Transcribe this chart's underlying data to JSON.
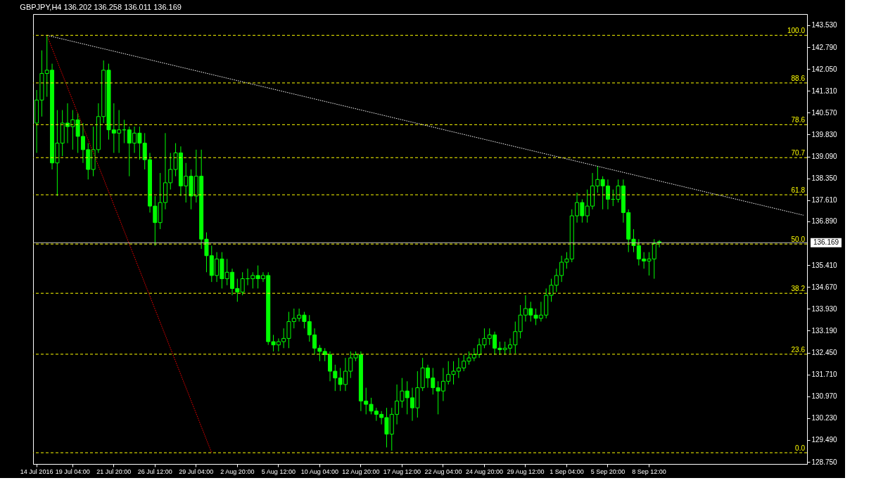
{
  "chart_data": {
    "type": "candlestick",
    "title": "GBPJPY,H4  136.202 136.258 136.011 136.169",
    "color": "#00ff00",
    "categories": [
      "14 Jul 2016",
      null,
      null,
      null,
      null,
      null,
      null,
      "19 Jul 04:00",
      null,
      null,
      null,
      null,
      null,
      null,
      null,
      "21 Jul 20:00",
      null,
      null,
      null,
      null,
      null,
      null,
      null,
      "26 Jul 12:00",
      null,
      null,
      null,
      null,
      null,
      null,
      null,
      "29 Jul 04:00",
      null,
      null,
      null,
      null,
      null,
      null,
      null,
      "2 Aug 20:00",
      null,
      null,
      null,
      null,
      null,
      null,
      null,
      "5 Aug 12:00",
      null,
      null,
      null,
      null,
      null,
      null,
      null,
      "10 Aug 04:00",
      null,
      null,
      null,
      null,
      null,
      null,
      null,
      "12 Aug 20:00",
      null,
      null,
      null,
      null,
      null,
      null,
      null,
      "17 Aug 12:00",
      null,
      null,
      null,
      null,
      null,
      null,
      null,
      "22 Aug 04:00",
      null,
      null,
      null,
      null,
      null,
      null,
      null,
      "24 Aug 20:00",
      null,
      null,
      null,
      null,
      null,
      null,
      null,
      "29 Aug 12:00",
      null,
      null,
      null,
      null,
      null,
      null,
      null,
      "1 Sep 04:00",
      null,
      null,
      null,
      null,
      null,
      null,
      null,
      "5 Sep 20:00",
      null,
      null,
      null,
      null,
      null,
      null,
      null,
      "8 Sep 12:00",
      null,
      null,
      null,
      null,
      null,
      null,
      null,
      null,
      null,
      null,
      null,
      null,
      null,
      null,
      null,
      null,
      null,
      null,
      null,
      null,
      null,
      null,
      null,
      null,
      null,
      null,
      null,
      null,
      null,
      null
    ],
    "ohlc": [
      [
        140.22,
        141.34,
        139.21,
        141.0
      ],
      [
        141.0,
        142.68,
        140.44,
        141.9
      ],
      [
        141.9,
        143.19,
        141.11,
        142.01
      ],
      [
        142.01,
        142.23,
        138.65,
        138.87
      ],
      [
        138.87,
        140.66,
        137.75,
        139.54
      ],
      [
        139.54,
        140.66,
        139.1,
        140.22
      ],
      [
        140.22,
        140.89,
        139.54,
        140.1
      ],
      [
        140.1,
        140.66,
        139.32,
        140.33
      ],
      [
        140.33,
        140.55,
        139.21,
        139.77
      ],
      [
        139.77,
        140.22,
        138.87,
        139.32
      ],
      [
        139.32,
        139.54,
        138.31,
        138.65
      ],
      [
        138.65,
        140.1,
        138.42,
        139.32
      ],
      [
        139.32,
        140.89,
        139.21,
        140.44
      ],
      [
        140.44,
        142.34,
        140.22,
        142.01
      ],
      [
        142.01,
        142.23,
        139.66,
        139.99
      ],
      [
        139.99,
        140.89,
        139.21,
        139.88
      ],
      [
        139.88,
        140.66,
        139.21,
        139.99
      ],
      [
        139.99,
        140.33,
        139.54,
        139.99
      ],
      [
        139.99,
        140.1,
        138.42,
        139.54
      ],
      [
        139.54,
        140.1,
        139.21,
        139.88
      ],
      [
        139.88,
        140.1,
        138.98,
        139.54
      ],
      [
        139.54,
        139.88,
        138.65,
        138.98
      ],
      [
        138.98,
        139.21,
        137.19,
        137.41
      ],
      [
        137.41,
        137.75,
        136.07,
        136.85
      ],
      [
        136.85,
        138.53,
        136.63,
        137.53
      ],
      [
        137.53,
        139.88,
        137.3,
        138.2
      ],
      [
        138.2,
        139.21,
        137.97,
        138.65
      ],
      [
        138.65,
        139.54,
        138.42,
        139.21
      ],
      [
        139.21,
        139.43,
        137.75,
        138.09
      ],
      [
        138.09,
        138.87,
        137.53,
        138.42
      ],
      [
        138.42,
        138.65,
        137.3,
        137.75
      ],
      [
        137.75,
        139.32,
        137.53,
        138.42
      ],
      [
        138.42,
        139.32,
        135.96,
        136.29
      ],
      [
        136.29,
        136.52,
        135.17,
        135.73
      ],
      [
        135.73,
        136.07,
        134.84,
        135.06
      ],
      [
        135.06,
        135.85,
        134.84,
        135.62
      ],
      [
        135.62,
        135.85,
        134.62,
        134.95
      ],
      [
        134.95,
        135.62,
        134.73,
        135.17
      ],
      [
        135.17,
        135.29,
        134.39,
        134.62
      ],
      [
        134.62,
        134.95,
        134.17,
        134.5
      ],
      [
        134.5,
        135.17,
        134.39,
        134.95
      ],
      [
        134.95,
        135.29,
        134.73,
        134.95
      ],
      [
        134.95,
        135.17,
        134.62,
        135.06
      ],
      [
        135.06,
        135.4,
        134.62,
        134.95
      ],
      [
        134.95,
        135.17,
        134.84,
        135.06
      ],
      [
        135.06,
        135.17,
        132.71,
        132.82
      ],
      [
        132.82,
        133.05,
        132.49,
        132.71
      ],
      [
        132.71,
        132.93,
        132.49,
        132.82
      ],
      [
        132.82,
        133.27,
        132.6,
        132.93
      ],
      [
        132.93,
        133.83,
        132.6,
        133.5
      ],
      [
        133.5,
        133.94,
        133.27,
        133.61
      ],
      [
        133.61,
        133.94,
        133.5,
        133.72
      ],
      [
        133.72,
        133.83,
        133.27,
        133.5
      ],
      [
        133.5,
        133.72,
        132.82,
        133.05
      ],
      [
        133.05,
        133.27,
        132.38,
        132.6
      ],
      [
        132.6,
        132.71,
        132.16,
        132.49
      ],
      [
        132.49,
        132.6,
        132.16,
        132.38
      ],
      [
        132.38,
        132.49,
        131.48,
        131.82
      ],
      [
        131.82,
        132.04,
        131.15,
        131.59
      ],
      [
        131.59,
        131.93,
        131.15,
        131.37
      ],
      [
        131.37,
        132.27,
        131.15,
        131.82
      ],
      [
        131.82,
        132.49,
        131.59,
        132.27
      ],
      [
        132.27,
        132.49,
        132.16,
        132.38
      ],
      [
        132.38,
        132.49,
        130.47,
        130.81
      ],
      [
        130.81,
        131.26,
        130.36,
        130.7
      ],
      [
        130.7,
        130.92,
        130.36,
        130.47
      ],
      [
        130.47,
        130.58,
        130.14,
        130.36
      ],
      [
        130.36,
        130.47,
        130.02,
        130.25
      ],
      [
        130.25,
        130.58,
        129.24,
        129.69
      ],
      [
        129.69,
        130.58,
        129.13,
        130.36
      ],
      [
        130.36,
        131.37,
        130.02,
        130.81
      ],
      [
        130.81,
        131.59,
        130.58,
        131.15
      ],
      [
        131.15,
        131.48,
        130.36,
        130.92
      ],
      [
        130.92,
        131.26,
        130.14,
        130.58
      ],
      [
        130.58,
        131.82,
        130.25,
        131.26
      ],
      [
        131.26,
        132.27,
        131.15,
        131.93
      ],
      [
        131.93,
        132.04,
        131.26,
        131.59
      ],
      [
        131.59,
        131.93,
        131.03,
        131.26
      ],
      [
        131.26,
        131.48,
        130.36,
        131.15
      ],
      [
        131.15,
        131.93,
        130.81,
        131.48
      ],
      [
        131.48,
        132.16,
        131.37,
        131.71
      ],
      [
        131.71,
        132.16,
        131.37,
        131.82
      ],
      [
        131.82,
        132.27,
        131.59,
        131.93
      ],
      [
        131.93,
        132.38,
        131.82,
        132.16
      ],
      [
        132.16,
        132.49,
        132.04,
        132.27
      ],
      [
        132.27,
        132.6,
        132.16,
        132.38
      ],
      [
        132.38,
        132.93,
        132.27,
        132.71
      ],
      [
        132.71,
        133.27,
        132.6,
        132.93
      ],
      [
        132.93,
        133.27,
        132.71,
        133.05
      ],
      [
        133.05,
        133.16,
        132.38,
        132.6
      ],
      [
        132.6,
        132.82,
        132.38,
        132.55
      ],
      [
        132.55,
        132.82,
        132.38,
        132.6
      ],
      [
        132.6,
        132.93,
        132.42,
        132.71
      ],
      [
        132.71,
        133.5,
        132.42,
        133.16
      ],
      [
        133.16,
        134.06,
        132.93,
        133.72
      ],
      [
        133.72,
        134.39,
        133.5,
        133.94
      ],
      [
        133.94,
        134.17,
        133.5,
        133.72
      ],
      [
        133.72,
        133.94,
        133.38,
        133.61
      ],
      [
        133.61,
        134.17,
        133.5,
        133.72
      ],
      [
        133.72,
        134.62,
        133.61,
        134.39
      ],
      [
        134.39,
        134.95,
        134.17,
        134.73
      ],
      [
        134.73,
        135.29,
        134.5,
        135.06
      ],
      [
        135.06,
        135.73,
        134.84,
        135.51
      ],
      [
        135.51,
        135.85,
        135.29,
        135.62
      ],
      [
        135.62,
        137.3,
        135.51,
        137.08
      ],
      [
        137.08,
        137.86,
        136.85,
        137.53
      ],
      [
        137.53,
        137.64,
        136.85,
        137.08
      ],
      [
        137.08,
        137.97,
        136.85,
        137.41
      ],
      [
        137.41,
        138.53,
        137.3,
        138.09
      ],
      [
        138.09,
        138.76,
        137.86,
        138.31
      ],
      [
        138.31,
        138.42,
        137.3,
        138.09
      ],
      [
        138.09,
        138.31,
        137.3,
        137.64
      ],
      [
        137.64,
        137.97,
        137.41,
        137.64
      ],
      [
        137.64,
        138.31,
        137.53,
        138.09
      ],
      [
        138.09,
        138.31,
        136.85,
        137.19
      ],
      [
        137.19,
        137.3,
        135.85,
        136.29
      ],
      [
        136.29,
        136.63,
        135.85,
        136.07
      ],
      [
        136.07,
        136.29,
        135.4,
        135.62
      ],
      [
        135.62,
        135.85,
        135.29,
        135.55
      ],
      [
        135.55,
        135.85,
        135.06,
        135.62
      ],
      [
        135.62,
        136.29,
        134.95,
        136.14
      ],
      [
        136.202,
        136.258,
        136.011,
        136.169
      ],
      null,
      null,
      null,
      null,
      null,
      null,
      null,
      null,
      null,
      null,
      null,
      null,
      null,
      null,
      null,
      null,
      null,
      null,
      null,
      null,
      null,
      null,
      null,
      null,
      null,
      null,
      null,
      null
    ],
    "series": [
      {
        "type": "line",
        "color": "#ffffff",
        "line_style": "dotted",
        "values": [
          null,
          null,
          143.19,
          null,
          null,
          null,
          null,
          null,
          null,
          null,
          null,
          null,
          null,
          null,
          null,
          null,
          null,
          null,
          null,
          null,
          null,
          null,
          null,
          null,
          null,
          null,
          null,
          null,
          null,
          null,
          null,
          null,
          null,
          null,
          null,
          null,
          null,
          null,
          null,
          null,
          null,
          null,
          null,
          null,
          null,
          null,
          null,
          null,
          null,
          null,
          null,
          null,
          null,
          null,
          null,
          null,
          null,
          null,
          null,
          null,
          null,
          null,
          null,
          null,
          null,
          null,
          null,
          null,
          null,
          null,
          null,
          null,
          null,
          null,
          null,
          null,
          null,
          null,
          null,
          null,
          null,
          null,
          null,
          null,
          null,
          null,
          null,
          null,
          null,
          null,
          null,
          null,
          null,
          null,
          null,
          null,
          null,
          null,
          null,
          null,
          null,
          null,
          null,
          null,
          null,
          null,
          null,
          null,
          null,
          null,
          null,
          null,
          null,
          null,
          null,
          null,
          null,
          null,
          null,
          null,
          null,
          null,
          null,
          null,
          null,
          null,
          null,
          null,
          null,
          null,
          null,
          null,
          null,
          null,
          null,
          null,
          null,
          null,
          null,
          null,
          null,
          null,
          null,
          null,
          null,
          null,
          null,
          null,
          null,
          137.1
        ]
      },
      {
        "type": "line",
        "color": "#ff0000",
        "line_style": "dotted",
        "values": [
          null,
          null,
          143.19,
          null,
          null,
          null,
          null,
          null,
          null,
          null,
          null,
          null,
          null,
          null,
          null,
          null,
          null,
          null,
          null,
          null,
          null,
          null,
          null,
          null,
          null,
          null,
          null,
          null,
          null,
          null,
          null,
          null,
          null,
          null,
          129.06,
          null,
          null,
          null,
          null,
          null,
          null,
          null,
          null,
          null,
          null,
          null,
          null,
          null,
          null,
          null,
          null,
          null,
          null,
          null,
          null,
          null,
          null,
          null,
          null,
          null,
          null,
          null,
          null,
          null,
          null,
          null,
          null,
          null,
          null,
          null,
          null,
          null,
          null,
          null,
          null,
          null,
          null,
          null,
          null,
          null,
          null,
          null,
          null,
          null,
          null,
          null,
          null,
          null,
          null,
          null,
          null,
          null,
          null,
          null,
          null,
          null,
          null,
          null,
          null,
          null,
          null,
          null,
          null,
          null,
          null,
          null,
          null,
          null,
          null,
          null,
          null,
          null,
          null,
          null,
          null,
          null,
          null,
          null,
          null,
          null,
          null,
          null,
          null,
          null,
          null,
          null,
          null,
          null,
          null,
          null,
          null,
          null,
          null,
          null,
          null,
          null,
          null,
          null,
          null,
          null,
          null,
          null,
          null,
          null,
          null,
          null,
          null,
          null,
          null,
          null
        ]
      }
    ],
    "ylim": [
      128.68,
      143.91
    ],
    "yticks": [
      {
        "value": 128.75,
        "label": "128.750"
      },
      {
        "value": 129.49,
        "label": "129.490"
      },
      {
        "value": 130.23,
        "label": "130.230"
      },
      {
        "value": 130.97,
        "label": "130.970"
      },
      {
        "value": 131.71,
        "label": "131.710"
      },
      {
        "value": 132.45,
        "label": "132.450"
      },
      {
        "value": 133.19,
        "label": "133.190"
      },
      {
        "value": 133.93,
        "label": "133.930"
      },
      {
        "value": 134.67,
        "label": "134.670"
      },
      {
        "value": 135.41,
        "label": "135.410"
      },
      {
        "value": 136.89,
        "label": "136.890"
      },
      {
        "value": 137.61,
        "label": "137.610"
      },
      {
        "value": 138.35,
        "label": "138.350"
      },
      {
        "value": 139.09,
        "label": "139.090"
      },
      {
        "value": 139.83,
        "label": "139.830"
      },
      {
        "value": 140.57,
        "label": "140.570"
      },
      {
        "value": 141.31,
        "label": "141.310"
      },
      {
        "value": 142.05,
        "label": "142.050"
      },
      {
        "value": 142.79,
        "label": "142.790"
      },
      {
        "value": 143.53,
        "label": "143.530"
      }
    ],
    "ref_lines": [
      {
        "axis": "y2",
        "value": 100.0,
        "label": "100.0",
        "color": "#ffff00",
        "line_style": "dashed"
      },
      {
        "axis": "y2",
        "value": 88.6,
        "label": "88.6",
        "color": "#ffff00",
        "line_style": "dashed"
      },
      {
        "axis": "y2",
        "value": 78.6,
        "label": "78.6",
        "color": "#ffff00",
        "line_style": "dashed"
      },
      {
        "axis": "y2",
        "value": 70.7,
        "label": "70.7",
        "color": "#ffff00",
        "line_style": "dashed"
      },
      {
        "axis": "y2",
        "value": 61.8,
        "label": "61.8",
        "color": "#ffff00",
        "line_style": "dashed"
      },
      {
        "axis": "y2",
        "value": 50.0,
        "label": "50.0",
        "color": "#ffff00",
        "line_style": "dashed"
      },
      {
        "axis": "y2",
        "value": 38.2,
        "label": "38.2",
        "color": "#ffff00",
        "line_style": "dashed"
      },
      {
        "axis": "y2",
        "value": 23.6,
        "label": "23.6",
        "color": "#ffff00",
        "line_style": "dashed"
      },
      {
        "axis": "y2",
        "value": 0.0,
        "label": "0.0",
        "color": "#ffff00",
        "line_style": "dashed"
      },
      {
        "axis": "y",
        "value": 136.169,
        "label": "136.169",
        "color": "#c0c0c0",
        "line_style": "solid"
      }
    ],
    "y2lim": [
      -2.69,
      105.1
    ]
  }
}
